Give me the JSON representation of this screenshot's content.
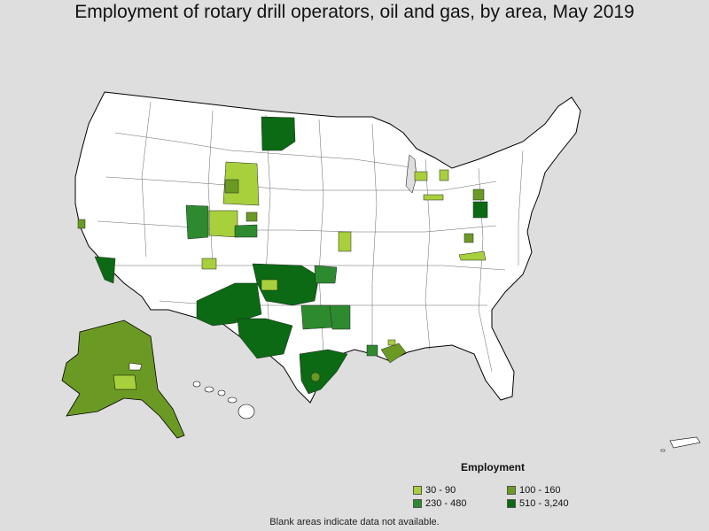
{
  "title": "Employment of rotary drill operators, oil and gas, by area, May 2019",
  "legend": {
    "title": "Employment",
    "items": [
      {
        "label": "30 - 90",
        "color": "#a7d03c"
      },
      {
        "label": "100 - 160",
        "color": "#6b9a24"
      },
      {
        "label": "230 - 480",
        "color": "#2d8a2f"
      },
      {
        "label": "510 - 3,240",
        "color": "#0b6a13"
      }
    ]
  },
  "footnote": "Blank areas indicate data not available.",
  "colors": {
    "background": "#dedede",
    "land": "#ffffff",
    "border": "#000000"
  }
}
